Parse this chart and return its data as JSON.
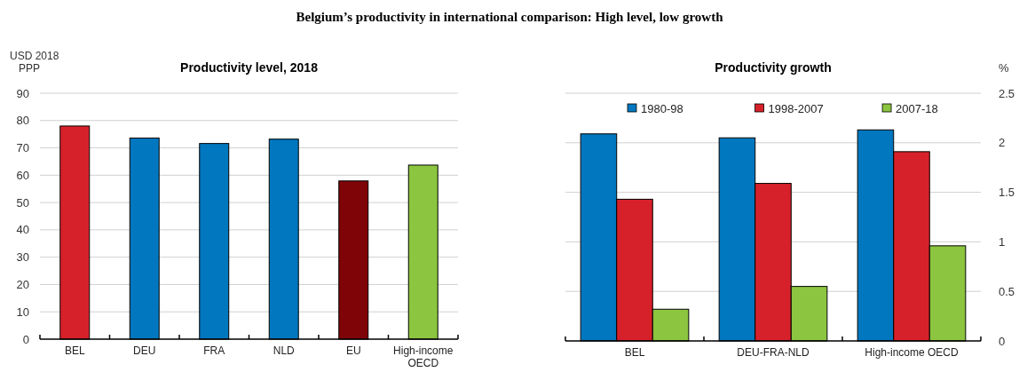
{
  "chart_data": [
    {
      "type": "bar",
      "title": "Belgium’s productivity in international comparison: High level, low growth",
      "subtitle": "Productivity level, 2018",
      "ylabel": "USD 2018 PPP",
      "categories": [
        "BEL",
        "DEU",
        "FRA",
        "NLD",
        "EU",
        "High-income OECD"
      ],
      "values": [
        78,
        73.6,
        71.6,
        73.2,
        57.9,
        63.7
      ],
      "colors": [
        "#d7212a",
        "#0077bf",
        "#0077bf",
        "#0077bf",
        "#7f0408",
        "#8cc540"
      ],
      "ylim": [
        0,
        90
      ],
      "yticks": [
        0,
        10,
        20,
        30,
        40,
        50,
        60,
        70,
        80,
        90
      ],
      "grid": "y",
      "legend": false
    },
    {
      "type": "bar",
      "title": "Productivity growth",
      "y2label": "%",
      "categories": [
        "BEL",
        "DEU-FRA-NLD",
        "High-income OECD"
      ],
      "series": [
        {
          "name": "1980-98",
          "color": "#0077bf",
          "axis": "y2",
          "values": [
            2.09,
            2.05,
            2.13
          ]
        },
        {
          "name": "1998-2007",
          "color": "#d7212a",
          "axis": "y2",
          "values": [
            1.43,
            1.59,
            1.91
          ]
        },
        {
          "name": "2007-18",
          "color": "#8cc540",
          "axis": "y2",
          "values": [
            0.32,
            0.55,
            0.96
          ]
        }
      ],
      "y2lim": [
        0,
        2.5
      ],
      "y2ticks": [
        0,
        0.5,
        1,
        1.5,
        2,
        2.5
      ],
      "grid": "y",
      "legend": "top"
    }
  ]
}
